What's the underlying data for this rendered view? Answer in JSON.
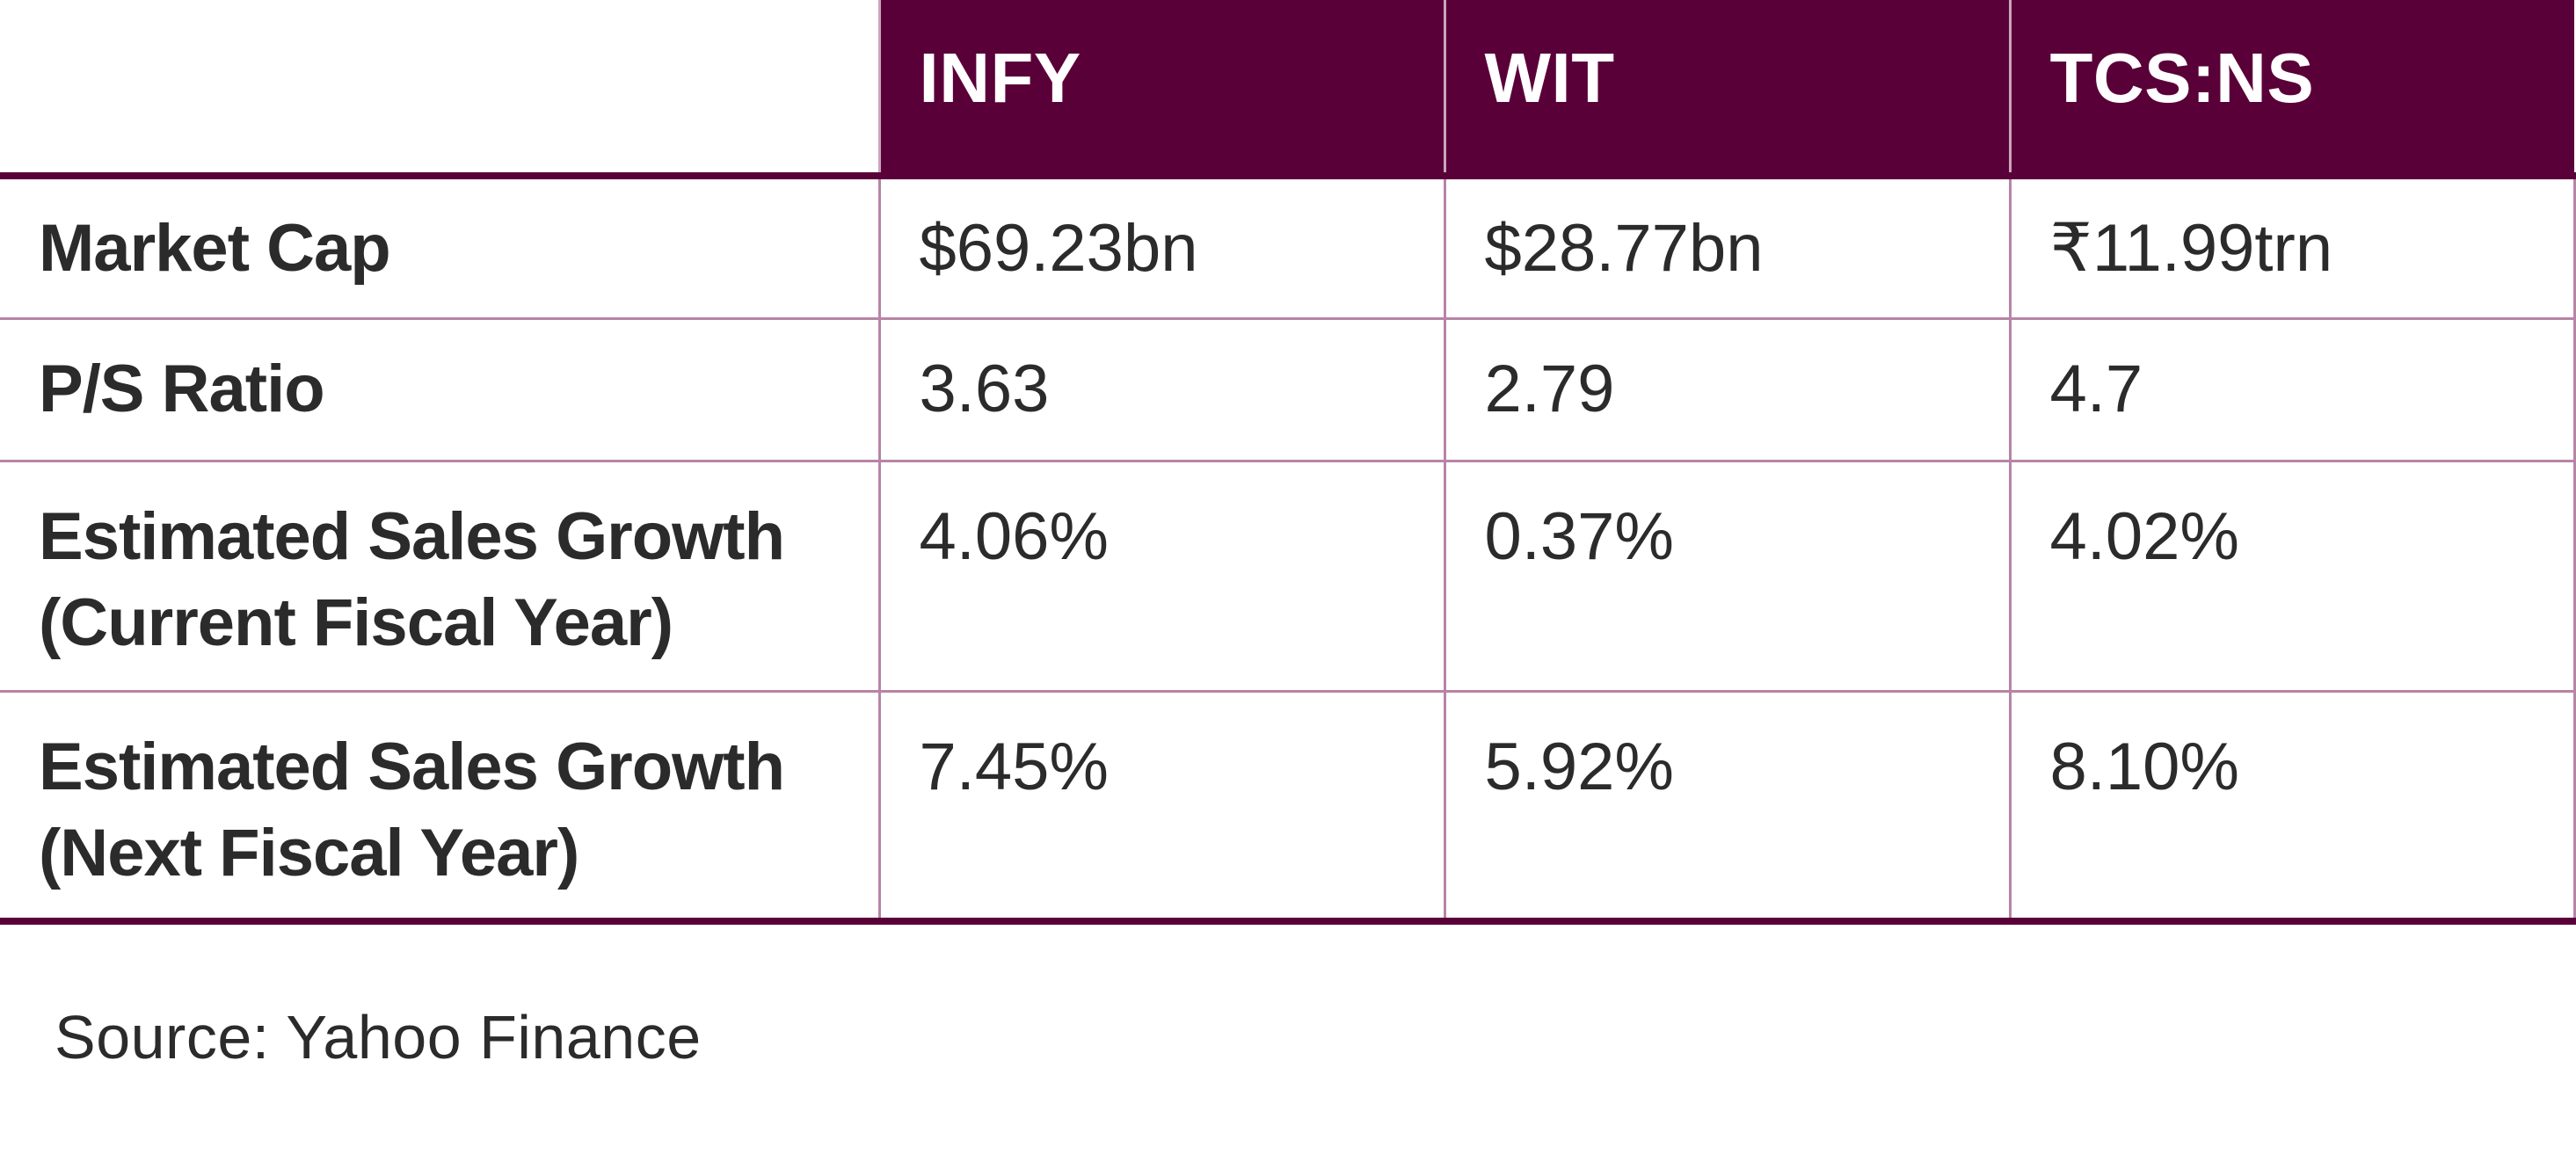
{
  "table": {
    "headers": [
      "INFY",
      "WIT",
      "TCS:NS"
    ],
    "rows": [
      {
        "label": "Market Cap",
        "values": [
          "$69.23bn",
          "$28.77bn",
          "₹11.99trn"
        ]
      },
      {
        "label": "P/S Ratio",
        "values": [
          "3.63",
          "2.79",
          "4.7"
        ]
      },
      {
        "label": "Estimated Sales Growth (Current Fiscal Year)",
        "values": [
          "4.06%",
          "0.37%",
          "4.02%"
        ]
      },
      {
        "label": "Estimated Sales Growth (Next Fiscal Year)",
        "values": [
          "7.45%",
          "5.92%",
          "8.10%"
        ]
      }
    ]
  },
  "source": "Source: Yahoo Finance",
  "colors": {
    "header_bg": "#5a0038",
    "grid_line": "#b784a6"
  }
}
